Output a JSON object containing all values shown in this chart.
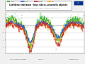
{
  "title": "Confidence indicators - base indices, seasonally adjusted",
  "subtitle1": "European Commission • DG ECFIN • Business and Consumer Surveys",
  "subtitle2": "Industry ■  Services ■  Consumer confidence ■  Retail trade ■  Construction ■  Economic sentiment",
  "fig_bg": "#f0f0f0",
  "plot_bg": "#ffffff",
  "header_bg": "#e8e8e8",
  "grid_color": "#cccccc",
  "ylim": [
    -38,
    18
  ],
  "num_points": 280,
  "line_colors": [
    "#22aa22",
    "#3366cc",
    "#cc2222",
    "#ffaa00",
    "#aa44aa",
    "#00bbbb"
  ],
  "legend_labels": [
    "Industry",
    "Services",
    "Consumer",
    "Retail",
    "Construction",
    "ESI"
  ],
  "yticks": [
    -30,
    -20,
    -10,
    0,
    10
  ],
  "footer_bg": "#e0e0e0"
}
